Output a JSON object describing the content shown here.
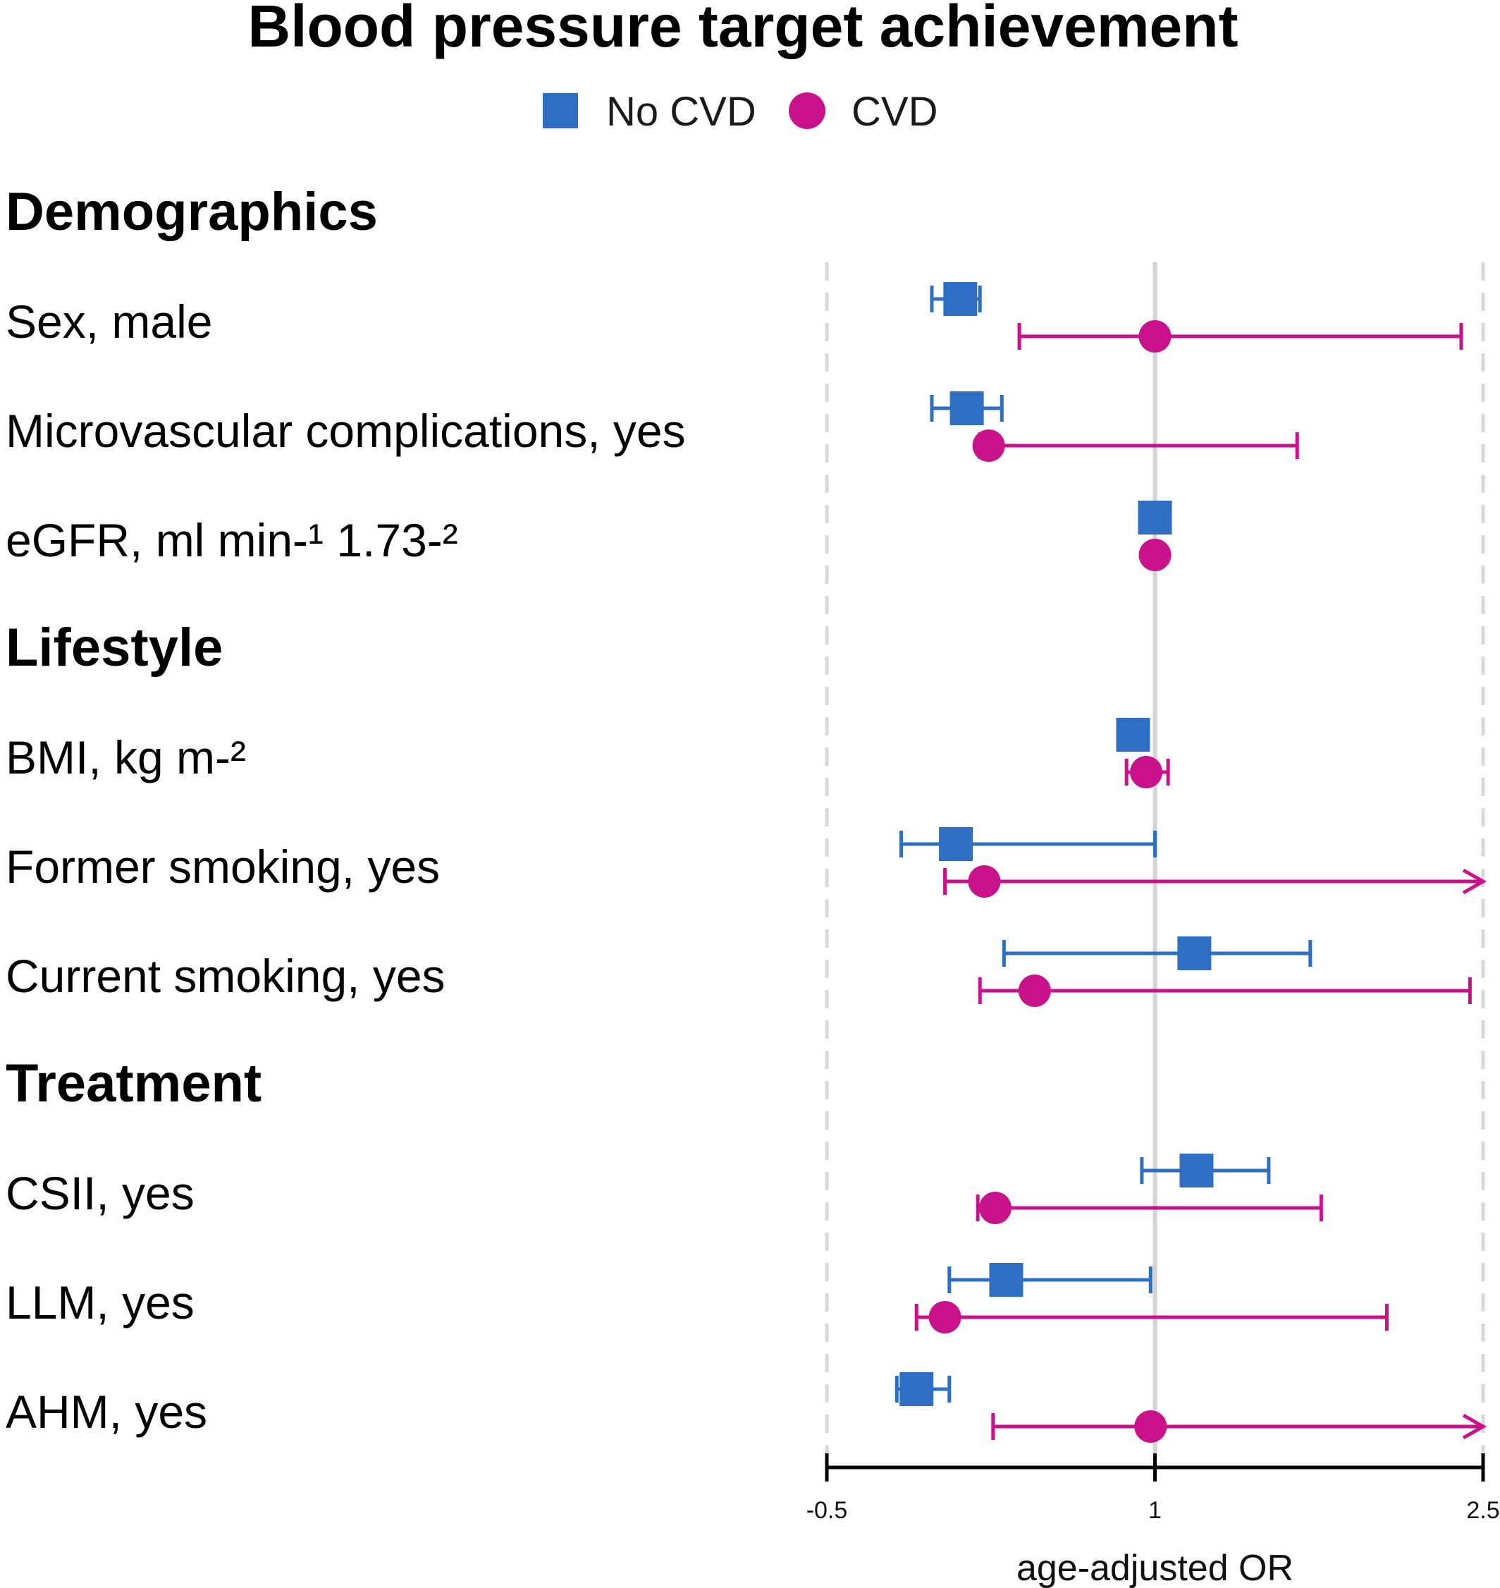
{
  "title": "Blood pressure target achievement",
  "legend": [
    {
      "label": "No CVD",
      "shape": "square",
      "color": "#2e6fc3"
    },
    {
      "label": "CVD",
      "shape": "circle",
      "color": "#c8118a"
    }
  ],
  "colors": {
    "no_cvd": "#2e6fc3",
    "cvd": "#c8118a",
    "reference_line": "#d3d3d3",
    "boundary_dashes": "#d9d9d9",
    "axis": "#000000"
  },
  "chart_data": {
    "type": "forest",
    "title": "Blood pressure target achievement",
    "xlabel": "age-adjusted OR",
    "xlim": [
      -0.5,
      2.5
    ],
    "xticks": [
      -0.5,
      1,
      2.5
    ],
    "xtick_labels": [
      "-0.5",
      "1",
      "2.5"
    ],
    "reference_line": 1,
    "dashed_bounds": [
      -0.5,
      2.5
    ],
    "series": [
      {
        "name": "No CVD",
        "marker": "square"
      },
      {
        "name": "CVD",
        "marker": "circle"
      }
    ],
    "groups": [
      {
        "label": "Demographics",
        "rows": [
          {
            "label": "Sex, male",
            "no_cvd": {
              "estimate": 0.11,
              "lower": -0.02,
              "upper": 0.2
            },
            "cvd": {
              "estimate": 1.0,
              "lower": 0.38,
              "upper": 2.4
            }
          },
          {
            "label": "Microvascular complications, yes",
            "no_cvd": {
              "estimate": 0.14,
              "lower": -0.02,
              "upper": 0.3
            },
            "cvd": {
              "estimate": 0.24,
              "lower": 0.2,
              "upper": 1.65
            }
          },
          {
            "label": "eGFR, ml min-¹ 1.73-²",
            "no_cvd": {
              "estimate": 1.0,
              "lower": 1.0,
              "upper": 1.0
            },
            "cvd": {
              "estimate": 1.0,
              "lower": 1.0,
              "upper": 1.0
            }
          }
        ]
      },
      {
        "label": "Lifestyle",
        "rows": [
          {
            "label": "BMI, kg m-²",
            "no_cvd": {
              "estimate": 0.9,
              "lower": 0.9,
              "upper": 0.9
            },
            "cvd": {
              "estimate": 0.96,
              "lower": 0.87,
              "upper": 1.06
            }
          },
          {
            "label": "Former smoking, yes",
            "no_cvd": {
              "estimate": 0.09,
              "lower": -0.16,
              "upper": 1.0
            },
            "cvd": {
              "estimate": 0.22,
              "lower": 0.04,
              "upper": 2.5,
              "upper_truncated": true
            }
          },
          {
            "label": "Current smoking, yes",
            "no_cvd": {
              "estimate": 1.18,
              "lower": 0.31,
              "upper": 1.71
            },
            "cvd": {
              "estimate": 0.45,
              "lower": 0.2,
              "upper": 2.44
            }
          }
        ]
      },
      {
        "label": "Treatment",
        "rows": [
          {
            "label": "CSII, yes",
            "no_cvd": {
              "estimate": 1.19,
              "lower": 0.94,
              "upper": 1.52
            },
            "cvd": {
              "estimate": 0.27,
              "lower": 0.19,
              "upper": 1.76
            }
          },
          {
            "label": "LLM, yes",
            "no_cvd": {
              "estimate": 0.32,
              "lower": 0.06,
              "upper": 0.98
            },
            "cvd": {
              "estimate": 0.04,
              "lower": -0.09,
              "upper": 2.06
            }
          },
          {
            "label": "AHM, yes",
            "no_cvd": {
              "estimate": -0.09,
              "lower": -0.18,
              "upper": 0.06
            },
            "cvd": {
              "estimate": 0.98,
              "lower": 0.26,
              "upper": 2.5,
              "upper_truncated": true
            }
          }
        ]
      }
    ]
  }
}
